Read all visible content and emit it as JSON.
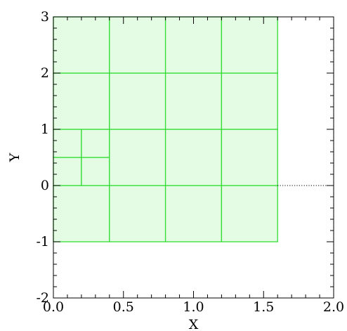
{
  "chart_data": {
    "type": "mesh",
    "xlabel": "X",
    "ylabel": "Y",
    "xlim": [
      0.0,
      2.0
    ],
    "ylim": [
      -2,
      3
    ],
    "x_ticks": [
      0.0,
      0.5,
      1.0,
      1.5,
      2.0
    ],
    "x_tick_labels": [
      "0.0",
      "0.5",
      "1.0",
      "1.5",
      "2.0"
    ],
    "y_ticks": [
      -2,
      -1,
      0,
      1,
      2,
      3
    ],
    "y_tick_labels": [
      "-2",
      "-1",
      "0",
      "1",
      "2",
      "3"
    ],
    "grid": false,
    "colors": {
      "fill": "#e4fbe4",
      "line": "#33dd33",
      "axis": "#000000",
      "reference_line": "#000000"
    },
    "domain": {
      "x": [
        0.0,
        1.6
      ],
      "y": [
        -1.0,
        3.0
      ]
    },
    "cells": [
      {
        "x0": 0.0,
        "x1": 0.4,
        "y0": -1.0,
        "y1": 0.0
      },
      {
        "x0": 0.4,
        "x1": 0.8,
        "y0": -1.0,
        "y1": 0.0
      },
      {
        "x0": 0.8,
        "x1": 1.2,
        "y0": -1.0,
        "y1": 0.0
      },
      {
        "x0": 1.2,
        "x1": 1.6,
        "y0": -1.0,
        "y1": 0.0
      },
      {
        "x0": 0.0,
        "x1": 0.2,
        "y0": 0.0,
        "y1": 0.5
      },
      {
        "x0": 0.2,
        "x1": 0.4,
        "y0": 0.0,
        "y1": 0.5
      },
      {
        "x0": 0.0,
        "x1": 0.2,
        "y0": 0.5,
        "y1": 1.0
      },
      {
        "x0": 0.2,
        "x1": 0.4,
        "y0": 0.5,
        "y1": 1.0
      },
      {
        "x0": 0.4,
        "x1": 0.8,
        "y0": 0.0,
        "y1": 1.0
      },
      {
        "x0": 0.8,
        "x1": 1.2,
        "y0": 0.0,
        "y1": 1.0
      },
      {
        "x0": 1.2,
        "x1": 1.6,
        "y0": 0.0,
        "y1": 1.0
      },
      {
        "x0": 0.0,
        "x1": 0.4,
        "y0": 1.0,
        "y1": 2.0
      },
      {
        "x0": 0.4,
        "x1": 0.8,
        "y0": 1.0,
        "y1": 2.0
      },
      {
        "x0": 0.8,
        "x1": 1.2,
        "y0": 1.0,
        "y1": 2.0
      },
      {
        "x0": 1.2,
        "x1": 1.6,
        "y0": 1.0,
        "y1": 2.0
      },
      {
        "x0": 0.0,
        "x1": 0.4,
        "y0": 2.0,
        "y1": 3.0
      },
      {
        "x0": 0.4,
        "x1": 0.8,
        "y0": 2.0,
        "y1": 3.0
      },
      {
        "x0": 0.8,
        "x1": 1.2,
        "y0": 2.0,
        "y1": 3.0
      },
      {
        "x0": 1.2,
        "x1": 1.6,
        "y0": 2.0,
        "y1": 3.0
      }
    ],
    "reference_line": {
      "y": 0.0,
      "x0": 1.6,
      "x1": 2.0,
      "style": "dotted"
    }
  }
}
